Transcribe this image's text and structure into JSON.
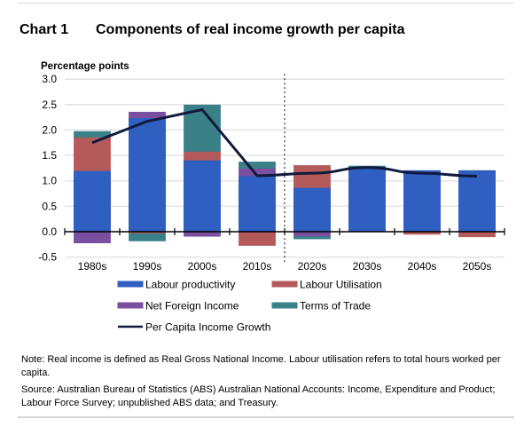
{
  "header": {
    "chart_number": "Chart 1",
    "title": "Components of real income growth per capita"
  },
  "chart_data": {
    "type": "bar",
    "stacked": true,
    "title": "Components of real income growth per capita",
    "ylabel": "Percentage points",
    "xlabel": "",
    "ylim": [
      -0.5,
      3.0
    ],
    "yticks": [
      "3.0",
      "2.5",
      "2.0",
      "1.5",
      "1.0",
      "0.5",
      "0.0",
      "-0.5"
    ],
    "ytick_values": [
      3.0,
      2.5,
      2.0,
      1.5,
      1.0,
      0.5,
      0.0,
      -0.5
    ],
    "grid": true,
    "categories": [
      "1980s",
      "1990s",
      "2000s",
      "2010s",
      "2020s",
      "2030s",
      "2040s",
      "2050s"
    ],
    "projection_divider_after": "2010s",
    "series": [
      {
        "name": "Labour productivity",
        "type": "bar",
        "color": "#2f5fc0",
        "values": [
          1.2,
          2.24,
          1.41,
          1.1,
          0.87,
          1.25,
          1.2,
          1.2
        ]
      },
      {
        "name": "Labour Utilisation",
        "type": "bar",
        "color": "#b55a5a",
        "values": [
          0.66,
          -0.04,
          0.17,
          -0.27,
          0.43,
          0.02,
          -0.05,
          -0.1
        ]
      },
      {
        "name": "Net Foreign Income",
        "type": "bar",
        "color": "#7b4fa0",
        "values": [
          -0.22,
          0.11,
          -0.09,
          0.15,
          -0.1,
          0.0,
          0.0,
          0.0
        ]
      },
      {
        "name": "Terms of Trade",
        "type": "bar",
        "color": "#3a8088",
        "values": [
          0.11,
          -0.14,
          0.91,
          0.12,
          -0.04,
          0.02,
          0.0,
          0.0
        ]
      },
      {
        "name": "Per Capita Income Growth",
        "type": "line",
        "color": "#0f1a3c",
        "values": [
          1.75,
          2.17,
          2.4,
          1.1,
          1.15,
          1.26,
          1.15,
          1.09
        ]
      }
    ],
    "legend": {
      "placement": "bottom",
      "entries": [
        "Labour productivity",
        "Labour Utilisation",
        "Net Foreign Income",
        "Terms of Trade",
        "Per Capita Income Growth"
      ]
    }
  },
  "footer": {
    "note": "Note: Real income is defined as Real Gross National Income. Labour utilisation refers to total hours worked per capita.",
    "source": "Source: Australian Bureau of Statistics (ABS) Australian National Accounts: Income, Expenditure and Product; Labour Force Survey; unpublished ABS data; and Treasury."
  }
}
